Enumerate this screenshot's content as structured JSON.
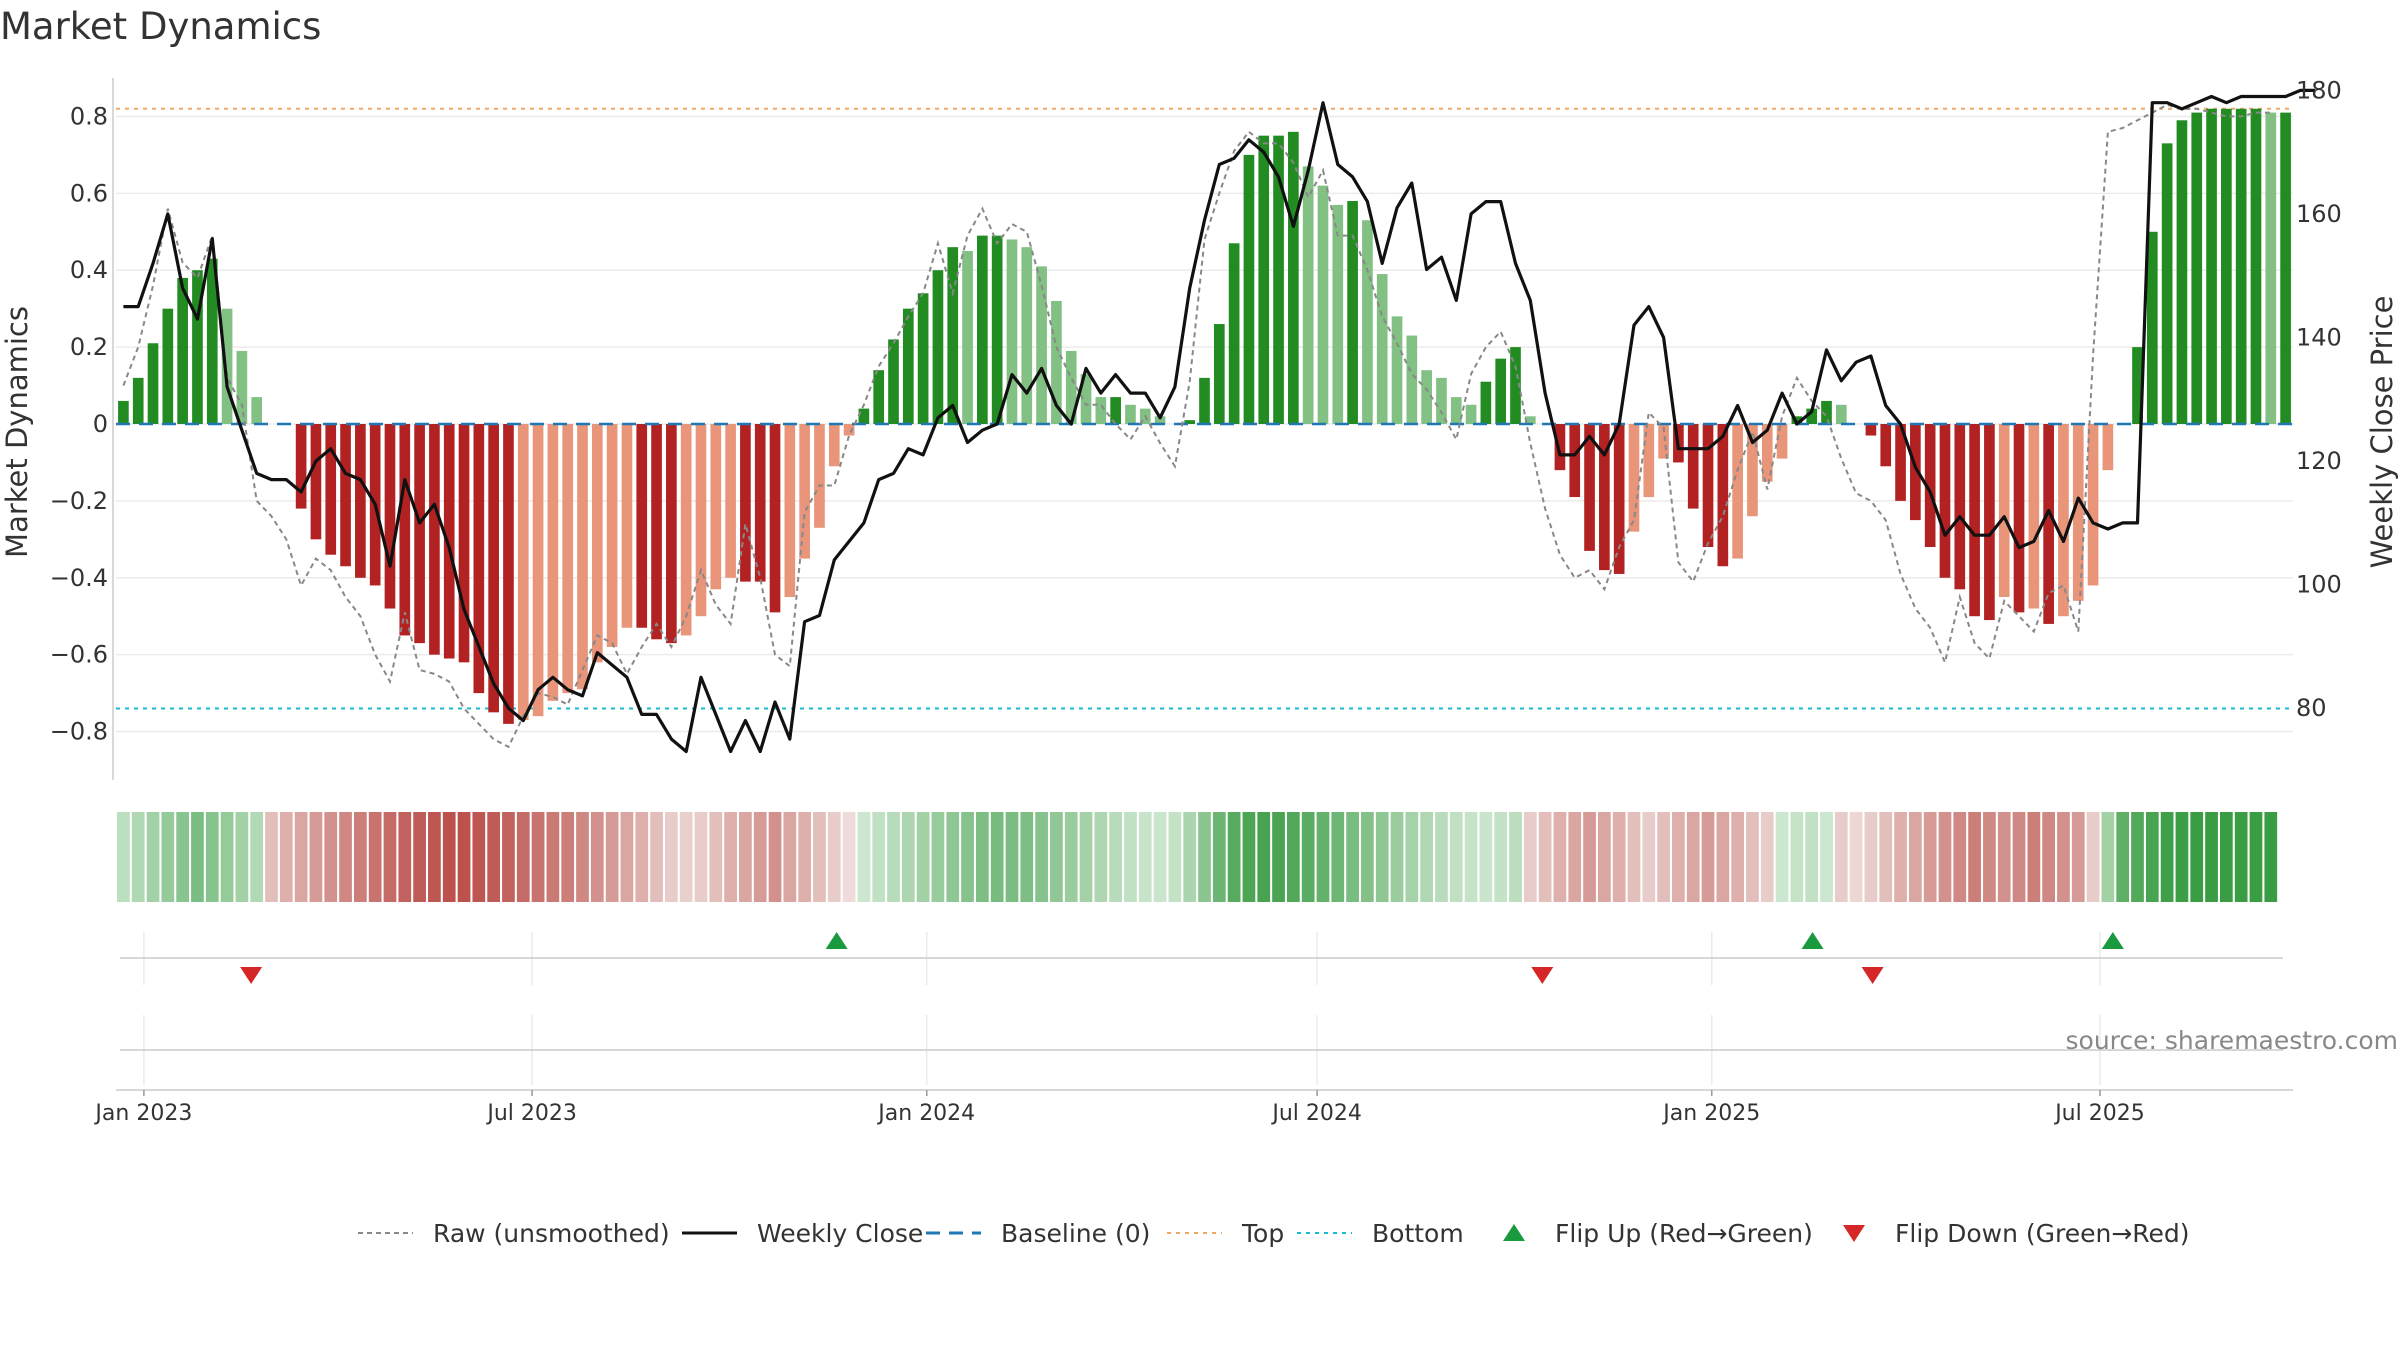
{
  "chart_data": {
    "type": "bar",
    "title": "Market Dynamics",
    "ylabel_left": "Market Dynamics",
    "ylabel_right": "Weekly Close Price",
    "ylim_left": [
      -0.9,
      0.9
    ],
    "ylim_right": [
      70,
      182
    ],
    "left_ticks": [
      -0.8,
      -0.6,
      -0.4,
      -0.2,
      0,
      0.2,
      0.4,
      0.6,
      0.8
    ],
    "left_tick_labels": [
      "−0.8",
      "−0.6",
      "−0.4",
      "−0.2",
      "0",
      "0.2",
      "0.4",
      "0.6",
      "0.8"
    ],
    "right_ticks": [
      80,
      100,
      120,
      140,
      160,
      180
    ],
    "right_tick_labels": [
      "80",
      "100",
      "120",
      "140",
      "160",
      "180"
    ],
    "x_start": "2022-12-19",
    "x_end": "2025-09-29",
    "x_ticks": [
      "2023-01-01",
      "2023-07-01",
      "2024-01-01",
      "2024-07-01",
      "2025-01-01",
      "2025-07-01"
    ],
    "x_tick_labels": [
      "Jan 2023",
      "Jul 2023",
      "Jan 2024",
      "Jul 2024",
      "Jan 2025",
      "Jul 2025"
    ],
    "grid": true,
    "top_level": 0.82,
    "bottom_level": -0.74,
    "baseline": 0,
    "colors": {
      "green_strong": "#228B22",
      "green_light": "#82C084",
      "red_strong": "#B22222",
      "red_light": "#E8957A",
      "close": "#111111",
      "raw": "#888888",
      "baseline": "#1F77B4",
      "top": "#F0A868",
      "bottom": "#17BECF",
      "flip_up": "#1A9A3E",
      "flip_down": "#D62728",
      "grid": "#EBEBEB",
      "axis": "#CCCCCC"
    },
    "dynamics": [
      0.06,
      0.12,
      0.21,
      0.3,
      0.38,
      0.4,
      0.43,
      0.3,
      0.19,
      0.07,
      0,
      0,
      -0.22,
      -0.3,
      -0.34,
      -0.37,
      -0.4,
      -0.42,
      -0.48,
      -0.55,
      -0.57,
      -0.6,
      -0.61,
      -0.62,
      -0.7,
      -0.75,
      -0.78,
      -0.77,
      -0.76,
      -0.72,
      -0.7,
      -0.69,
      -0.62,
      -0.58,
      -0.53,
      -0.53,
      -0.56,
      -0.57,
      -0.55,
      -0.5,
      -0.43,
      -0.4,
      -0.41,
      -0.41,
      -0.49,
      -0.45,
      -0.35,
      -0.27,
      -0.11,
      -0.03,
      0.04,
      0.14,
      0.22,
      0.3,
      0.34,
      0.4,
      0.46,
      0.45,
      0.49,
      0.49,
      0.48,
      0.46,
      0.41,
      0.32,
      0.19,
      0.13,
      0.07,
      0.07,
      0.05,
      0.04,
      0.02,
      0,
      0.01,
      0.12,
      0.26,
      0.47,
      0.7,
      0.75,
      0.75,
      0.76,
      0.67,
      0.62,
      0.57,
      0.58,
      0.53,
      0.39,
      0.28,
      0.23,
      0.14,
      0.12,
      0.07,
      0.05,
      0.11,
      0.17,
      0.2,
      0.02,
      0,
      -0.12,
      -0.19,
      -0.33,
      -0.38,
      -0.39,
      -0.28,
      -0.19,
      -0.09,
      -0.1,
      -0.22,
      -0.32,
      -0.37,
      -0.35,
      -0.24,
      -0.15,
      -0.09,
      0.02,
      0.04,
      0.06,
      0.05,
      0,
      -0.03,
      -0.11,
      -0.2,
      -0.25,
      -0.32,
      -0.4,
      -0.43,
      -0.5,
      -0.51,
      -0.45,
      -0.49,
      -0.48,
      -0.52,
      -0.5,
      -0.46,
      -0.42,
      -0.12,
      0,
      0.2,
      0.5,
      0.73,
      0.79,
      0.81,
      0.82,
      0.82,
      0.82,
      0.82,
      0.81,
      0.81
    ],
    "close": [
      145,
      145,
      152,
      160,
      148,
      143,
      156,
      132,
      125,
      118,
      117,
      117,
      115,
      120,
      122,
      118,
      117,
      113,
      103,
      117,
      110,
      113,
      106,
      96,
      90,
      84,
      80,
      78,
      83,
      85,
      83,
      82,
      89,
      87,
      85,
      79,
      79,
      75,
      73,
      85,
      79,
      73,
      78,
      73,
      81,
      75,
      94,
      95,
      104,
      107,
      110,
      117,
      118,
      122,
      121,
      127,
      129,
      123,
      125,
      126,
      134,
      131,
      135,
      129,
      126,
      135,
      131,
      134,
      131,
      131,
      127,
      132,
      148,
      159,
      168,
      169,
      172,
      170,
      166,
      158,
      167,
      178,
      168,
      166,
      162,
      152,
      161,
      165,
      151,
      153,
      146,
      160,
      162,
      162,
      152,
      146,
      131,
      121,
      121,
      124,
      121,
      126,
      142,
      145,
      140,
      122,
      122,
      122,
      124,
      129,
      123,
      125,
      131,
      126,
      128,
      138,
      133,
      136,
      137,
      129,
      126,
      119,
      115,
      108,
      111,
      108,
      108,
      111,
      106,
      107,
      112,
      107,
      114,
      110,
      109,
      110,
      110,
      178,
      178,
      177,
      178,
      179,
      178,
      179,
      179,
      179,
      179,
      180,
      180
    ],
    "raw": [
      0.1,
      0.2,
      0.36,
      0.56,
      0.42,
      0.38,
      0.49,
      0.12,
      0.05,
      -0.2,
      -0.24,
      -0.3,
      -0.42,
      -0.35,
      -0.38,
      -0.45,
      -0.5,
      -0.6,
      -0.67,
      -0.49,
      -0.64,
      -0.65,
      -0.67,
      -0.74,
      -0.78,
      -0.82,
      -0.84,
      -0.76,
      -0.7,
      -0.71,
      -0.73,
      -0.64,
      -0.55,
      -0.57,
      -0.65,
      -0.58,
      -0.52,
      -0.58,
      -0.5,
      -0.38,
      -0.47,
      -0.52,
      -0.26,
      -0.4,
      -0.6,
      -0.63,
      -0.23,
      -0.16,
      -0.16,
      -0.03,
      0.05,
      0.15,
      0.21,
      0.28,
      0.34,
      0.47,
      0.34,
      0.49,
      0.56,
      0.47,
      0.52,
      0.5,
      0.36,
      0.2,
      0.12,
      0.05,
      0.05,
      0.0,
      -0.04,
      0.02,
      -0.05,
      -0.11,
      0.11,
      0.48,
      0.6,
      0.71,
      0.76,
      0.73,
      0.73,
      0.68,
      0.59,
      0.66,
      0.49,
      0.49,
      0.4,
      0.28,
      0.21,
      0.13,
      0.09,
      0.03,
      -0.04,
      0.13,
      0.2,
      0.24,
      0.15,
      -0.05,
      -0.22,
      -0.34,
      -0.4,
      -0.38,
      -0.43,
      -0.32,
      -0.25,
      0.03,
      -0.01,
      -0.36,
      -0.41,
      -0.31,
      -0.24,
      -0.12,
      -0.02,
      -0.17,
      0.02,
      0.12,
      0.06,
      0.02,
      -0.09,
      -0.18,
      -0.2,
      -0.25,
      -0.39,
      -0.48,
      -0.53,
      -0.62,
      -0.45,
      -0.57,
      -0.61,
      -0.46,
      -0.5,
      -0.54,
      -0.44,
      -0.42,
      -0.54,
      0.18,
      0.76,
      0.77,
      0.79,
      0.81,
      0.83,
      0.82,
      0.82,
      0.81,
      0.8,
      0.8,
      0.81,
      0.81
    ],
    "state_colors": [
      "#BCDFC0",
      "#AFD8B3",
      "#A2D1A7",
      "#95CB9B",
      "#88C48F",
      "#7BBE83",
      "#87C38D",
      "#95CA99",
      "#A3D1A6",
      "#B2D9B5",
      "#E3BFBB",
      "#DFB0AB",
      "#DAA6A1",
      "#D69B97",
      "#D3918D",
      "#CF8883",
      "#CC7E79",
      "#C8736F",
      "#C56B67",
      "#C2625E",
      "#C05C58",
      "#BE5652",
      "#BC514D",
      "#BC514D",
      "#BE5652",
      "#C05C58",
      "#C2625E",
      "#C56B67",
      "#C8736F",
      "#CA7A75",
      "#CC7E79",
      "#CF8883",
      "#D3918D",
      "#D69B97",
      "#DAA6A1",
      "#DFB0AB",
      "#E3BFBB",
      "#E8CCC9",
      "#E9D0CD",
      "#E8CCC9",
      "#E3BFBB",
      "#DFB0AB",
      "#DAA6A1",
      "#D69B97",
      "#D3918D",
      "#DAA6A1",
      "#DFB0AB",
      "#E3BFBB",
      "#E8CCC9",
      "#EFDCDA",
      "#CCE7CF",
      "#C1E1C4",
      "#B7DCBA",
      "#ADD6B0",
      "#A3D1A6",
      "#99CC9D",
      "#8FC794",
      "#86C28C",
      "#7EBE85",
      "#78BB7F",
      "#7ABC81",
      "#7EBE85",
      "#86C28C",
      "#90C795",
      "#9ACC9E",
      "#A4D1A7",
      "#AED7B1",
      "#B8DCBB",
      "#C1E1C4",
      "#C7E4CA",
      "#C9E5CB",
      "#C4E2C6",
      "#ABD5AE",
      "#8BC590",
      "#6CB572",
      "#57AB5F",
      "#4BA553",
      "#47A350",
      "#4AA452",
      "#51A859",
      "#5AAC62",
      "#64B16B",
      "#6EB675",
      "#79BC7F",
      "#84C189",
      "#8FC794",
      "#9ACC9E",
      "#A5D2A8",
      "#AFD7B2",
      "#B8DCBB",
      "#BFE0C2",
      "#C6E3C8",
      "#C9E5CB",
      "#C4E2C6",
      "#BCDEBF",
      "#E8CCC9",
      "#E3BFBB",
      "#DFB0AB",
      "#DAA6A1",
      "#D69B97",
      "#DAA6A1",
      "#DFB0AB",
      "#E3BFBB",
      "#E8CCC9",
      "#E3BFBB",
      "#DFB0AB",
      "#DAA6A1",
      "#D69B97",
      "#DAA6A1",
      "#DFB0AB",
      "#E3BFBB",
      "#E8CCC9",
      "#CCE7CF",
      "#C6E3C8",
      "#C1E1C4",
      "#CCE7CF",
      "#E8CCC9",
      "#EDD6D3",
      "#E8CCC9",
      "#E3BFBB",
      "#DFB0AB",
      "#DAA6A1",
      "#D69B97",
      "#D3918D",
      "#CF8883",
      "#CC7E79",
      "#CF8883",
      "#D3918D",
      "#CF8883",
      "#CC7E79",
      "#CF8883",
      "#D3918D",
      "#D69B97",
      "#E8CCC9",
      "#A3D1A6",
      "#5FAF67",
      "#52A95A",
      "#48A450",
      "#40A04A",
      "#3C9E46",
      "#3A9D44",
      "#3A9D44",
      "#3A9D44",
      "#3A9D44",
      "#3A9D44",
      "#3A9D44"
    ],
    "flips_up": [
      "2023-11-20",
      "2025-02-17",
      "2025-07-07"
    ],
    "flips_down": [
      "2023-02-20",
      "2024-10-14",
      "2025-03-17"
    ],
    "legend": [
      {
        "key": "raw",
        "label": "Raw (unsmoothed)"
      },
      {
        "key": "close",
        "label": "Weekly Close"
      },
      {
        "key": "baseline",
        "label": "Baseline (0)"
      },
      {
        "key": "top",
        "label": "Top"
      },
      {
        "key": "bottom",
        "label": "Bottom"
      },
      {
        "key": "flip_up",
        "label": "Flip Up (Red→Green)"
      },
      {
        "key": "flip_down",
        "label": "Flip Down (Green→Red)"
      }
    ],
    "legend_position": "bottom-center",
    "source": "source: sharemaestro.com"
  }
}
